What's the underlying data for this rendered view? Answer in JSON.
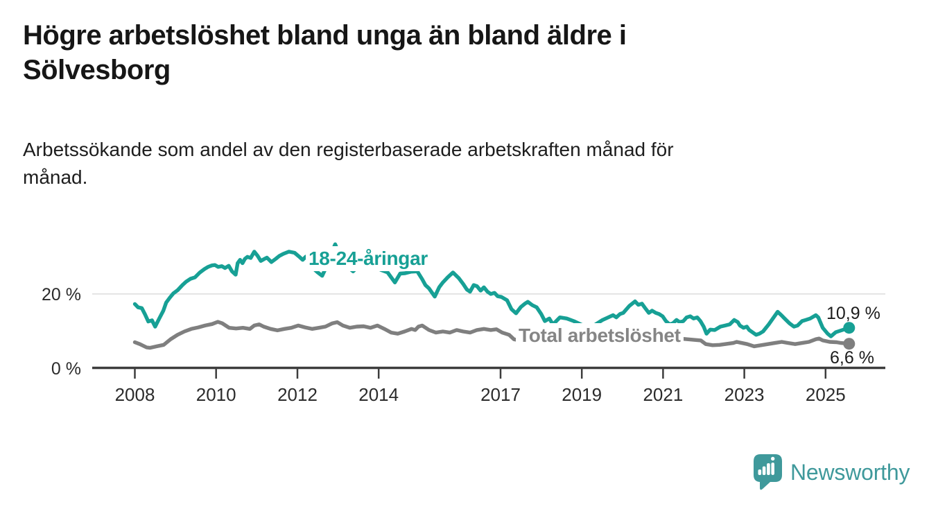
{
  "page": {
    "title": "Högre arbetslöshet bland unga än bland äldre i\nSölvesborg",
    "subtitle": "Arbetssökande som andel av den registerbaserade arbetskraften månad för\nmånad."
  },
  "footer": {
    "logo_text": "Newsworthy",
    "logo_color": "#3F999B"
  },
  "chart_data": {
    "type": "line",
    "title": "Högre arbetslöshet bland unga än bland äldre i Sölvesborg",
    "xlabel": "",
    "ylabel": "Arbetssökande som andel av den registerbaserade arbetskraften",
    "x_unit": "decimal_year",
    "xlim": [
      2006.95,
      2026.47
    ],
    "ylim": [
      0,
      34
    ],
    "grid_on": true,
    "grid_values": [
      20
    ],
    "grid_color": "#DCDCDC",
    "axis_color": "#3D3D3D",
    "tick_label_color": "#2B2B2B",
    "value_label_color": "#1C1C1C",
    "legend_position": "inline-labels",
    "yticks": [
      {
        "value": 0,
        "label": "0 %"
      },
      {
        "value": 20,
        "label": "20 %"
      }
    ],
    "xticks": [
      {
        "value": 2008,
        "label": "2008"
      },
      {
        "value": 2010,
        "label": "2010"
      },
      {
        "value": 2012,
        "label": "2012"
      },
      {
        "value": 2014,
        "label": "2014"
      },
      {
        "value": 2017,
        "label": "2017"
      },
      {
        "value": 2019,
        "label": "2019"
      },
      {
        "value": 2021,
        "label": "2021"
      },
      {
        "value": 2023,
        "label": "2023"
      },
      {
        "value": 2025,
        "label": "2025"
      }
    ],
    "series": [
      {
        "id": "18-24",
        "name": "18-24-åringar",
        "color": "#17A095",
        "label_color": "#17A095",
        "end_dot": true,
        "end_value": 10.9,
        "end_label": "10,9 %",
        "points": [
          [
            2008.0,
            17.3
          ],
          [
            2008.08,
            16.4
          ],
          [
            2008.17,
            16.2
          ],
          [
            2008.25,
            14.5
          ],
          [
            2008.33,
            12.6
          ],
          [
            2008.42,
            12.9
          ],
          [
            2008.5,
            11.2
          ],
          [
            2008.6,
            13.4
          ],
          [
            2008.7,
            15.5
          ],
          [
            2008.77,
            17.7
          ],
          [
            2008.86,
            19.0
          ],
          [
            2008.95,
            20.2
          ],
          [
            2009.05,
            21.0
          ],
          [
            2009.17,
            22.4
          ],
          [
            2009.26,
            23.3
          ],
          [
            2009.37,
            24.1
          ],
          [
            2009.48,
            24.5
          ],
          [
            2009.6,
            25.8
          ],
          [
            2009.71,
            26.7
          ],
          [
            2009.8,
            27.3
          ],
          [
            2009.9,
            27.7
          ],
          [
            2009.97,
            27.8
          ],
          [
            2010.05,
            27.3
          ],
          [
            2010.14,
            27.5
          ],
          [
            2010.22,
            27.0
          ],
          [
            2010.31,
            27.6
          ],
          [
            2010.39,
            26.1
          ],
          [
            2010.48,
            25.2
          ],
          [
            2010.53,
            28.3
          ],
          [
            2010.59,
            29.2
          ],
          [
            2010.65,
            28.3
          ],
          [
            2010.71,
            29.5
          ],
          [
            2010.77,
            30.0
          ],
          [
            2010.85,
            29.7
          ],
          [
            2010.94,
            31.4
          ],
          [
            2011.02,
            30.3
          ],
          [
            2011.1,
            28.9
          ],
          [
            2011.18,
            29.4
          ],
          [
            2011.25,
            29.8
          ],
          [
            2011.36,
            28.6
          ],
          [
            2011.47,
            29.5
          ],
          [
            2011.55,
            30.2
          ],
          [
            2011.65,
            30.8
          ],
          [
            2011.79,
            31.4
          ],
          [
            2011.93,
            31.1
          ],
          [
            2012.04,
            30.1
          ],
          [
            2012.13,
            29.2
          ],
          [
            2012.21,
            30.1
          ],
          [
            2012.33,
            28.0
          ],
          [
            2012.41,
            26.7
          ],
          [
            2012.5,
            25.8
          ],
          [
            2012.61,
            24.9
          ],
          [
            2012.7,
            27.0
          ],
          [
            2012.8,
            30.0
          ],
          [
            2012.93,
            33.4
          ],
          [
            2013.02,
            31.0
          ],
          [
            2013.1,
            29.2
          ],
          [
            2013.2,
            27.6
          ],
          [
            2013.37,
            26.1
          ],
          [
            2013.5,
            27.5
          ],
          [
            2013.6,
            28.3
          ],
          [
            2013.7,
            27.6
          ],
          [
            2013.8,
            28.0
          ],
          [
            2013.95,
            27.2
          ],
          [
            2014.05,
            26.5
          ],
          [
            2014.22,
            25.8
          ],
          [
            2014.4,
            23.1
          ],
          [
            2014.53,
            25.5
          ],
          [
            2014.65,
            25.6
          ],
          [
            2014.8,
            26.0
          ],
          [
            2014.95,
            26.1
          ],
          [
            2015.07,
            24.0
          ],
          [
            2015.15,
            22.4
          ],
          [
            2015.24,
            21.5
          ],
          [
            2015.38,
            19.3
          ],
          [
            2015.49,
            21.8
          ],
          [
            2015.58,
            23.1
          ],
          [
            2015.7,
            24.5
          ],
          [
            2015.83,
            25.8
          ],
          [
            2015.97,
            24.3
          ],
          [
            2016.08,
            22.7
          ],
          [
            2016.17,
            21.2
          ],
          [
            2016.25,
            20.6
          ],
          [
            2016.34,
            22.4
          ],
          [
            2016.42,
            22.1
          ],
          [
            2016.51,
            20.9
          ],
          [
            2016.59,
            21.8
          ],
          [
            2016.68,
            20.6
          ],
          [
            2016.76,
            20.0
          ],
          [
            2016.85,
            20.3
          ],
          [
            2016.93,
            19.4
          ],
          [
            2017.02,
            19.2
          ],
          [
            2017.16,
            18.3
          ],
          [
            2017.27,
            15.9
          ],
          [
            2017.38,
            14.8
          ],
          [
            2017.5,
            16.5
          ],
          [
            2017.6,
            17.4
          ],
          [
            2017.67,
            17.9
          ],
          [
            2017.78,
            17.0
          ],
          [
            2017.89,
            16.4
          ],
          [
            2018.0,
            14.6
          ],
          [
            2018.09,
            12.7
          ],
          [
            2018.2,
            13.4
          ],
          [
            2018.29,
            11.8
          ],
          [
            2018.46,
            13.7
          ],
          [
            2018.63,
            13.4
          ],
          [
            2018.8,
            12.7
          ],
          [
            2019.0,
            11.7
          ],
          [
            2019.2,
            10.9
          ],
          [
            2019.34,
            11.8
          ],
          [
            2019.51,
            13.0
          ],
          [
            2019.65,
            13.7
          ],
          [
            2019.77,
            14.3
          ],
          [
            2019.85,
            13.7
          ],
          [
            2019.94,
            14.6
          ],
          [
            2020.02,
            14.9
          ],
          [
            2020.17,
            16.8
          ],
          [
            2020.31,
            18.0
          ],
          [
            2020.39,
            17.1
          ],
          [
            2020.48,
            17.4
          ],
          [
            2020.56,
            16.2
          ],
          [
            2020.65,
            14.9
          ],
          [
            2020.73,
            15.5
          ],
          [
            2020.82,
            14.9
          ],
          [
            2020.9,
            14.6
          ],
          [
            2020.99,
            14.0
          ],
          [
            2021.07,
            12.7
          ],
          [
            2021.16,
            11.8
          ],
          [
            2021.24,
            12.1
          ],
          [
            2021.33,
            13.0
          ],
          [
            2021.41,
            12.4
          ],
          [
            2021.5,
            12.7
          ],
          [
            2021.58,
            13.7
          ],
          [
            2021.67,
            14.0
          ],
          [
            2021.75,
            13.4
          ],
          [
            2021.84,
            13.7
          ],
          [
            2021.92,
            12.7
          ],
          [
            2022.0,
            11.2
          ],
          [
            2022.07,
            9.3
          ],
          [
            2022.16,
            10.4
          ],
          [
            2022.27,
            10.3
          ],
          [
            2022.41,
            11.2
          ],
          [
            2022.53,
            11.5
          ],
          [
            2022.64,
            11.8
          ],
          [
            2022.75,
            13.0
          ],
          [
            2022.84,
            12.4
          ],
          [
            2022.89,
            11.5
          ],
          [
            2022.98,
            10.9
          ],
          [
            2023.06,
            11.2
          ],
          [
            2023.12,
            10.3
          ],
          [
            2023.29,
            9.0
          ],
          [
            2023.37,
            9.3
          ],
          [
            2023.46,
            9.9
          ],
          [
            2023.6,
            11.8
          ],
          [
            2023.82,
            15.2
          ],
          [
            2023.91,
            14.3
          ],
          [
            2023.99,
            13.4
          ],
          [
            2024.11,
            12.1
          ],
          [
            2024.22,
            11.2
          ],
          [
            2024.31,
            11.5
          ],
          [
            2024.42,
            12.7
          ],
          [
            2024.51,
            13.0
          ],
          [
            2024.62,
            13.4
          ],
          [
            2024.76,
            14.3
          ],
          [
            2024.82,
            13.7
          ],
          [
            2024.93,
            10.9
          ],
          [
            2025.05,
            9.3
          ],
          [
            2025.13,
            8.6
          ],
          [
            2025.25,
            9.7
          ],
          [
            2025.33,
            10.0
          ],
          [
            2025.58,
            10.9
          ]
        ]
      },
      {
        "id": "total",
        "name": "Total arbetslöshet",
        "color": "#7F7F7F",
        "label_color": "#858585",
        "end_dot": true,
        "end_value": 6.6,
        "end_label": "6,6 %",
        "points": [
          [
            2008.0,
            7.0
          ],
          [
            2008.12,
            6.5
          ],
          [
            2008.29,
            5.6
          ],
          [
            2008.37,
            5.5
          ],
          [
            2008.54,
            5.9
          ],
          [
            2008.71,
            6.3
          ],
          [
            2008.88,
            7.8
          ],
          [
            2009.05,
            9.0
          ],
          [
            2009.22,
            9.9
          ],
          [
            2009.39,
            10.6
          ],
          [
            2009.56,
            11.0
          ],
          [
            2009.73,
            11.5
          ],
          [
            2009.9,
            11.9
          ],
          [
            2010.04,
            12.5
          ],
          [
            2010.15,
            12.1
          ],
          [
            2010.32,
            10.9
          ],
          [
            2010.49,
            10.7
          ],
          [
            2010.66,
            10.9
          ],
          [
            2010.83,
            10.6
          ],
          [
            2010.94,
            11.5
          ],
          [
            2011.06,
            11.8
          ],
          [
            2011.17,
            11.2
          ],
          [
            2011.34,
            10.6
          ],
          [
            2011.51,
            10.2
          ],
          [
            2011.68,
            10.6
          ],
          [
            2011.85,
            10.9
          ],
          [
            2012.02,
            11.5
          ],
          [
            2012.19,
            11.0
          ],
          [
            2012.36,
            10.6
          ],
          [
            2012.53,
            10.9
          ],
          [
            2012.69,
            11.2
          ],
          [
            2012.86,
            12.1
          ],
          [
            2012.98,
            12.4
          ],
          [
            2013.12,
            11.5
          ],
          [
            2013.29,
            10.9
          ],
          [
            2013.46,
            11.2
          ],
          [
            2013.63,
            11.3
          ],
          [
            2013.8,
            10.9
          ],
          [
            2013.97,
            11.5
          ],
          [
            2014.14,
            10.6
          ],
          [
            2014.31,
            9.6
          ],
          [
            2014.47,
            9.3
          ],
          [
            2014.64,
            9.9
          ],
          [
            2014.81,
            10.6
          ],
          [
            2014.9,
            10.3
          ],
          [
            2014.98,
            11.2
          ],
          [
            2015.07,
            11.5
          ],
          [
            2015.24,
            10.3
          ],
          [
            2015.41,
            9.6
          ],
          [
            2015.58,
            9.9
          ],
          [
            2015.75,
            9.6
          ],
          [
            2015.92,
            10.3
          ],
          [
            2016.08,
            9.9
          ],
          [
            2016.25,
            9.6
          ],
          [
            2016.42,
            10.3
          ],
          [
            2016.59,
            10.6
          ],
          [
            2016.76,
            10.3
          ],
          [
            2016.9,
            10.5
          ],
          [
            2017.04,
            9.6
          ],
          [
            2017.21,
            9.0
          ],
          [
            2017.33,
            7.8
          ],
          [
            2017.5,
            7.4
          ],
          [
            2017.75,
            7.2
          ],
          [
            2018.0,
            7.0
          ],
          [
            2018.5,
            6.8
          ],
          [
            2019.0,
            6.9
          ],
          [
            2019.5,
            7.1
          ],
          [
            2020.0,
            7.6
          ],
          [
            2020.3,
            8.8
          ],
          [
            2020.6,
            8.5
          ],
          [
            2021.0,
            8.2
          ],
          [
            2021.5,
            7.9
          ],
          [
            2021.93,
            7.5
          ],
          [
            2022.05,
            6.5
          ],
          [
            2022.22,
            6.2
          ],
          [
            2022.39,
            6.3
          ],
          [
            2022.73,
            6.8
          ],
          [
            2022.81,
            7.1
          ],
          [
            2023.07,
            6.5
          ],
          [
            2023.24,
            5.9
          ],
          [
            2023.41,
            6.2
          ],
          [
            2023.75,
            6.8
          ],
          [
            2023.92,
            7.1
          ],
          [
            2024.08,
            6.8
          ],
          [
            2024.25,
            6.5
          ],
          [
            2024.42,
            6.8
          ],
          [
            2024.59,
            7.1
          ],
          [
            2024.76,
            7.8
          ],
          [
            2024.84,
            8.0
          ],
          [
            2024.93,
            7.5
          ],
          [
            2025.1,
            7.1
          ],
          [
            2025.27,
            7.0
          ],
          [
            2025.38,
            6.8
          ],
          [
            2025.58,
            6.6
          ]
        ]
      }
    ]
  }
}
